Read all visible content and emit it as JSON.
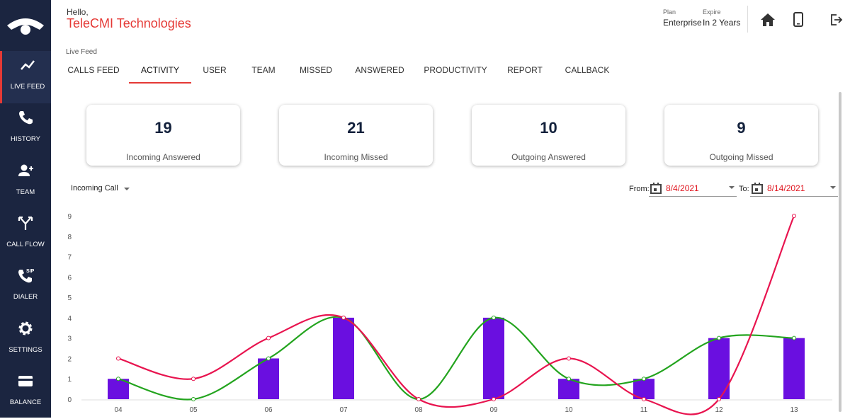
{
  "sidebar": [
    "LIVE FEED",
    "HISTORY",
    "TEAM",
    "CALL FLOW",
    "DIALER",
    "SETTINGS",
    "BALANCE"
  ],
  "header": {
    "greeting": "Hello,",
    "company": "TeleCMI Technologies",
    "plan_label": "Plan",
    "plan": "Enterprise",
    "expire_label": "Expire",
    "expire": "In 2 Years"
  },
  "breadcrumb": "Live Feed",
  "tabs": [
    "CALLS FEED",
    "ACTIVITY",
    "USER",
    "TEAM",
    "MISSED",
    "ANSWERED",
    "PRODUCTIVITY",
    "REPORT",
    "CALLBACK"
  ],
  "cards": [
    {
      "value": 19,
      "label": "Incoming Answered"
    },
    {
      "value": 21,
      "label": "Incoming Missed"
    },
    {
      "value": 10,
      "label": "Outgoing Answered"
    },
    {
      "value": 9,
      "label": "Outgoing Missed"
    }
  ],
  "filters": {
    "call_type": "Incoming Call",
    "from_label": "From:",
    "from": "8/4/2021",
    "to_label": "To:",
    "to": "8/14/2021"
  },
  "chart_data": {
    "type": "combo",
    "categories": [
      "04",
      "05",
      "06",
      "07",
      "08",
      "09",
      "10",
      "11",
      "12",
      "13"
    ],
    "series": [
      {
        "type": "bar",
        "color": "#6a0fe0",
        "values": [
          1,
          0,
          2,
          4,
          0,
          4,
          1,
          1,
          3,
          3
        ]
      },
      {
        "type": "line",
        "color": "#23a41e",
        "values": [
          1,
          0,
          2,
          4,
          0,
          4,
          1,
          1,
          3,
          3
        ]
      },
      {
        "type": "line",
        "color": "#e8144f",
        "values": [
          2,
          1,
          3,
          4,
          0,
          0,
          2,
          0,
          0,
          9
        ]
      }
    ],
    "ylim": [
      0,
      9
    ],
    "yticks": [
      0,
      1,
      2,
      3,
      4,
      5,
      6,
      7,
      8,
      9
    ],
    "grid": false
  }
}
